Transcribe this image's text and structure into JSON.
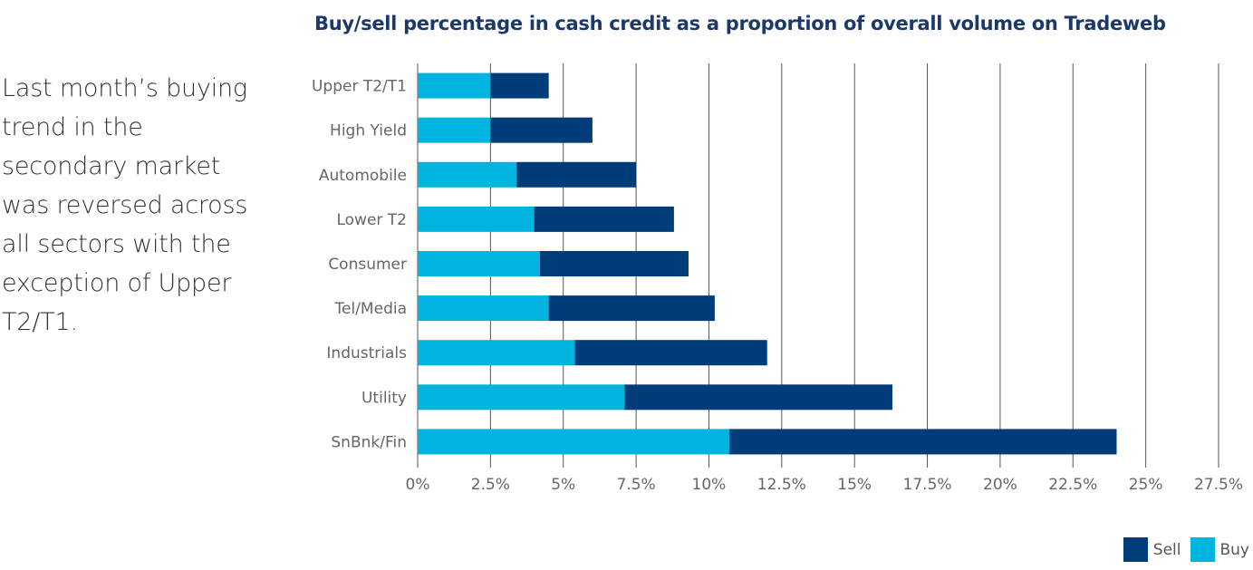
{
  "side_text": "Last month’s buying trend in the secondary market was reversed across all sectors with the exception of Upper T2/T1.",
  "chart_data": {
    "type": "bar",
    "orientation": "horizontal",
    "stacked": true,
    "title": "Buy/sell percentage in cash credit as a proportion of overall volume on Tradeweb",
    "categories": [
      "Upper T2/T1",
      "High Yield",
      "Automobile",
      "Lower T2",
      "Consumer",
      "Tel/Media",
      "Industrials",
      "Utility",
      "SnBnk/Fin"
    ],
    "series": [
      {
        "name": "Buy",
        "color": "#00b4e0",
        "values": [
          2.5,
          2.5,
          3.4,
          4.0,
          4.2,
          4.5,
          5.4,
          7.1,
          10.7
        ]
      },
      {
        "name": "Sell",
        "color": "#003b7a",
        "values": [
          2.0,
          3.5,
          4.1,
          4.8,
          5.1,
          5.7,
          6.6,
          9.2,
          13.3
        ]
      }
    ],
    "xlim": [
      0,
      27.5
    ],
    "xticks": [
      "0%",
      "2.5%",
      "5%",
      "7.5%",
      "10%",
      "12.5%",
      "15%",
      "17.5%",
      "20%",
      "22.5%",
      "25%",
      "27.5%"
    ],
    "grid": true,
    "legend": {
      "position": "bottom-right",
      "items": [
        {
          "label": "Sell",
          "color": "#003b7a"
        },
        {
          "label": "Buy",
          "color": "#00b4e0"
        }
      ]
    }
  }
}
